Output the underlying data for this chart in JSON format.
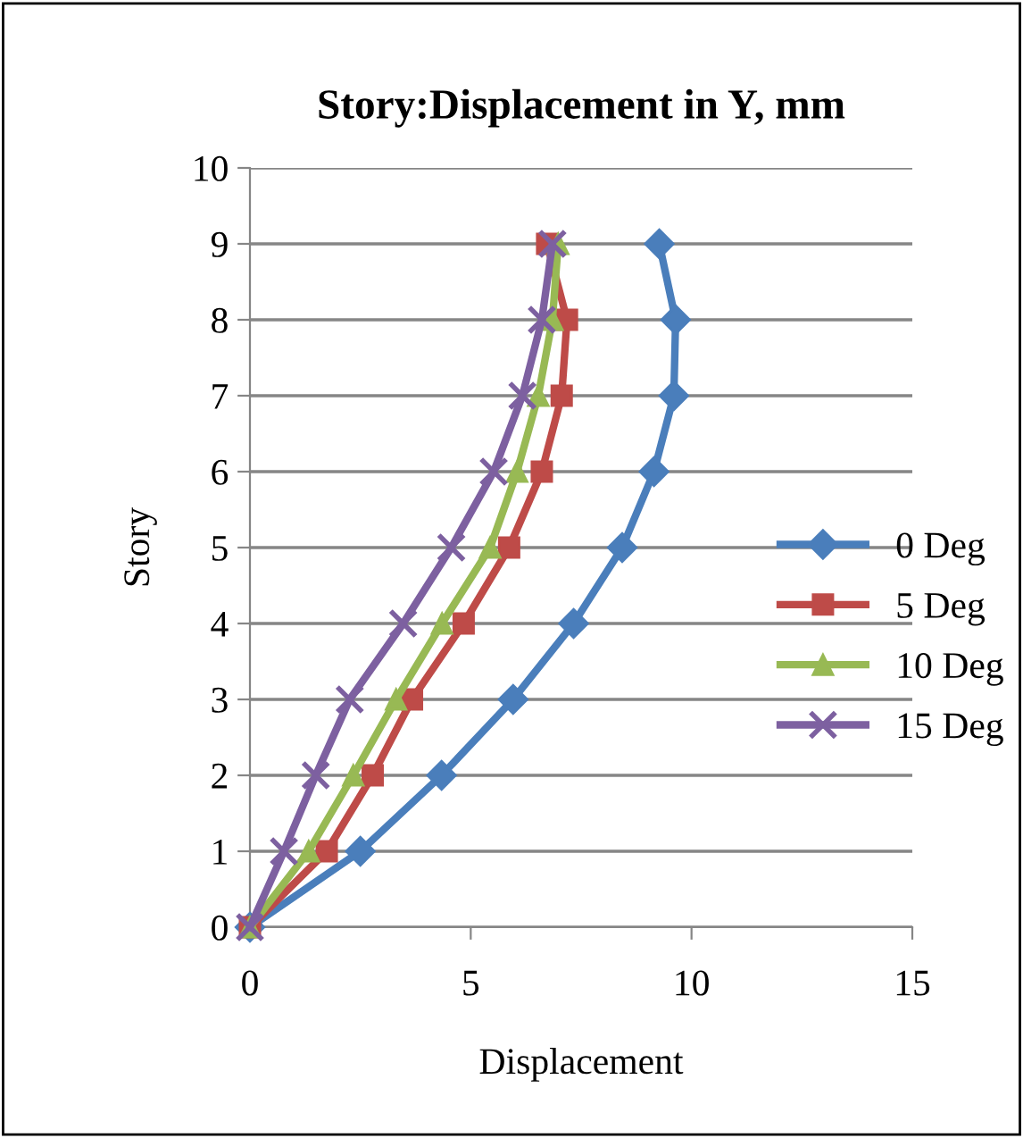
{
  "chart_data": {
    "type": "line",
    "title": "Story:Displacement in Y, mm",
    "xlabel": "Displacement",
    "ylabel": "Story",
    "xlim": [
      0,
      15
    ],
    "xticks": [
      0,
      5,
      10,
      15
    ],
    "ylim": [
      0,
      10
    ],
    "yticks": [
      0,
      1,
      2,
      3,
      4,
      5,
      6,
      7,
      8,
      9,
      10
    ],
    "grid": "y",
    "legend": "right",
    "series": [
      {
        "name": "0 Deg",
        "color": "#4a7ebb",
        "marker": "diamond",
        "x": [
          0,
          2.5,
          4.34,
          5.96,
          7.33,
          8.43,
          9.15,
          9.6,
          9.64,
          9.27
        ],
        "values": [
          0,
          1,
          2,
          3,
          4,
          5,
          6,
          7,
          8,
          9
        ]
      },
      {
        "name": "5 Deg",
        "color": "#be4b48",
        "marker": "square",
        "x": [
          0,
          1.74,
          2.78,
          3.67,
          4.84,
          5.87,
          6.61,
          7.06,
          7.18,
          6.73
        ],
        "values": [
          0,
          1,
          2,
          3,
          4,
          5,
          6,
          7,
          8,
          9
        ]
      },
      {
        "name": "10 Deg",
        "color": "#98b954",
        "marker": "triangle",
        "x": [
          0,
          1.33,
          2.34,
          3.31,
          4.35,
          5.44,
          6.05,
          6.53,
          6.85,
          6.98
        ],
        "values": [
          0,
          1,
          2,
          3,
          4,
          5,
          6,
          7,
          8,
          9
        ]
      },
      {
        "name": "15 Deg",
        "color": "#7d60a0",
        "marker": "cross",
        "x": [
          0,
          0.77,
          1.49,
          2.26,
          3.47,
          4.56,
          5.52,
          6.17,
          6.61,
          6.85
        ],
        "values": [
          0,
          1,
          2,
          3,
          4,
          5,
          6,
          7,
          8,
          9
        ]
      }
    ]
  }
}
